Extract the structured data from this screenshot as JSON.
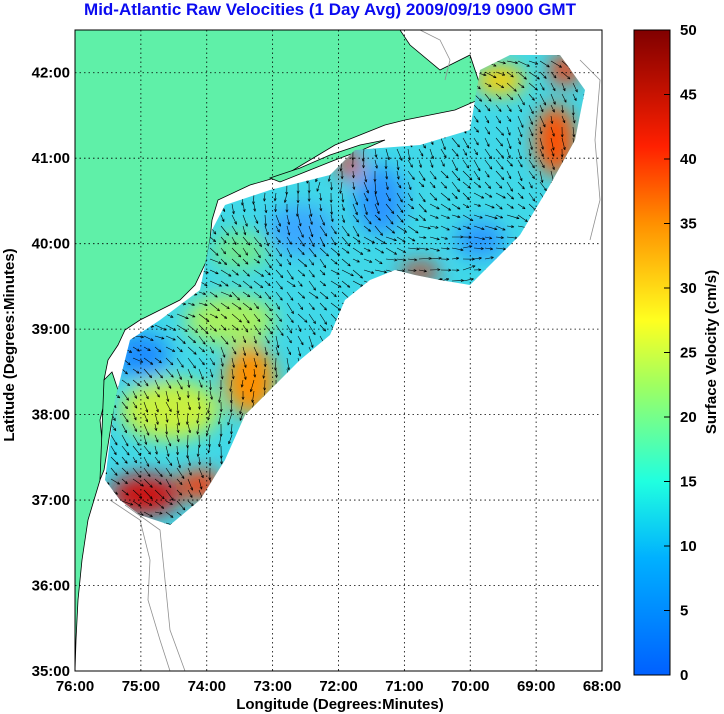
{
  "title": "Mid-Atlantic Raw Velocities (1 Day Avg) 2009/09/19 0900 GMT",
  "x_axis": {
    "label": "Longitude (Degrees:Minutes)",
    "ticks": [
      "76:00",
      "75:00",
      "74:00",
      "73:00",
      "72:00",
      "71:00",
      "70:00",
      "69:00",
      "68:00"
    ]
  },
  "y_axis": {
    "label": "Latitude (Degrees:Minutes)",
    "ticks": [
      "35:00",
      "36:00",
      "37:00",
      "38:00",
      "39:00",
      "40:00",
      "41:00",
      "42:00"
    ]
  },
  "colorbar": {
    "label": "Surface Velocity (cm/s)",
    "ticks": [
      "0",
      "5",
      "10",
      "15",
      "20",
      "25",
      "30",
      "35",
      "40",
      "45",
      "50"
    ]
  },
  "colors": {
    "title": "#0b0bf0",
    "land": "#5ff0a8",
    "colormap": [
      "#0000c0",
      "#0040ff",
      "#00c0ff",
      "#40ffc0",
      "#c0ff40",
      "#ffc000",
      "#ff4000",
      "#c00000",
      "#800000"
    ]
  },
  "chart_data": {
    "type": "heatmap",
    "xlim": [
      -76,
      -68
    ],
    "ylim": [
      35,
      42.5
    ],
    "clim": [
      0,
      50
    ],
    "grid": true
  }
}
